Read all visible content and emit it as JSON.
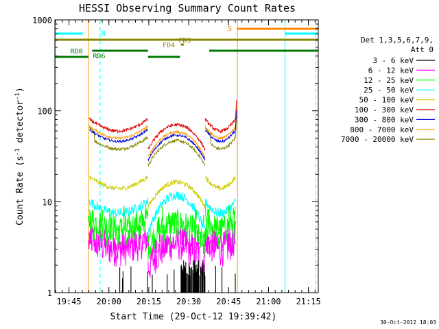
{
  "chart_data": {
    "type": "line",
    "title": "HESSI Observing Summary Count Rates",
    "xlabel": "Start Time (29-Oct-12 19:39:42)",
    "ylabel_main": "Count Rate (s",
    "ylabel_sup1": "-1",
    "ylabel_mid": " detector",
    "ylabel_sup2": "-1",
    "ylabel_end": ")",
    "yscale": "log",
    "ylim": [
      1,
      1000
    ],
    "xlim_minutes": [
      0,
      99
    ],
    "x_ticks": [
      {
        "label": "19:45",
        "m": 5.3
      },
      {
        "label": "20:00",
        "m": 20.3
      },
      {
        "label": "20:15",
        "m": 35.3
      },
      {
        "label": "20:30",
        "m": 50.3
      },
      {
        "label": "20:45",
        "m": 65.3
      },
      {
        "label": "21:00",
        "m": 80.3
      },
      {
        "label": "21:15",
        "m": 95.3
      }
    ],
    "y_ticks": [
      {
        "label": "1",
        "v": 1
      },
      {
        "label": "10",
        "v": 10
      },
      {
        "label": "100",
        "v": 100
      },
      {
        "label": "1000",
        "v": 1000
      }
    ],
    "legend_header": [
      "Det 1,3,5,6,7,9,",
      "Att 0"
    ],
    "series": [
      {
        "name": "3 - 6 keV",
        "color": "#000000"
      },
      {
        "name": "6 - 12 keV",
        "color": "#ff00ff"
      },
      {
        "name": "12 - 25 keV",
        "color": "#00ff00"
      },
      {
        "name": "25 - 50 keV",
        "color": "#00ffff"
      },
      {
        "name": "50 - 100 keV",
        "color": "#cccc00"
      },
      {
        "name": "100 - 300 keV",
        "color": "#dd0000"
      },
      {
        "name": "300 - 800 keV",
        "color": "#0000dd"
      },
      {
        "name": "800 - 7000 keV",
        "color": "#ff9900"
      },
      {
        "name": "7000 - 20000 keV",
        "color": "#888800"
      }
    ],
    "flag_labels": {
      "N": "N",
      "S": "S",
      "FD3": "FD3",
      "FD4": "FD4",
      "RD0": "RD0",
      "RD6": "RD6"
    },
    "colors": {
      "N": "#00ffff",
      "S": "#ff8800",
      "FD": "#888800",
      "RD": "#007700"
    },
    "footer_timestamp": "30-Oct-2012 18:03"
  }
}
